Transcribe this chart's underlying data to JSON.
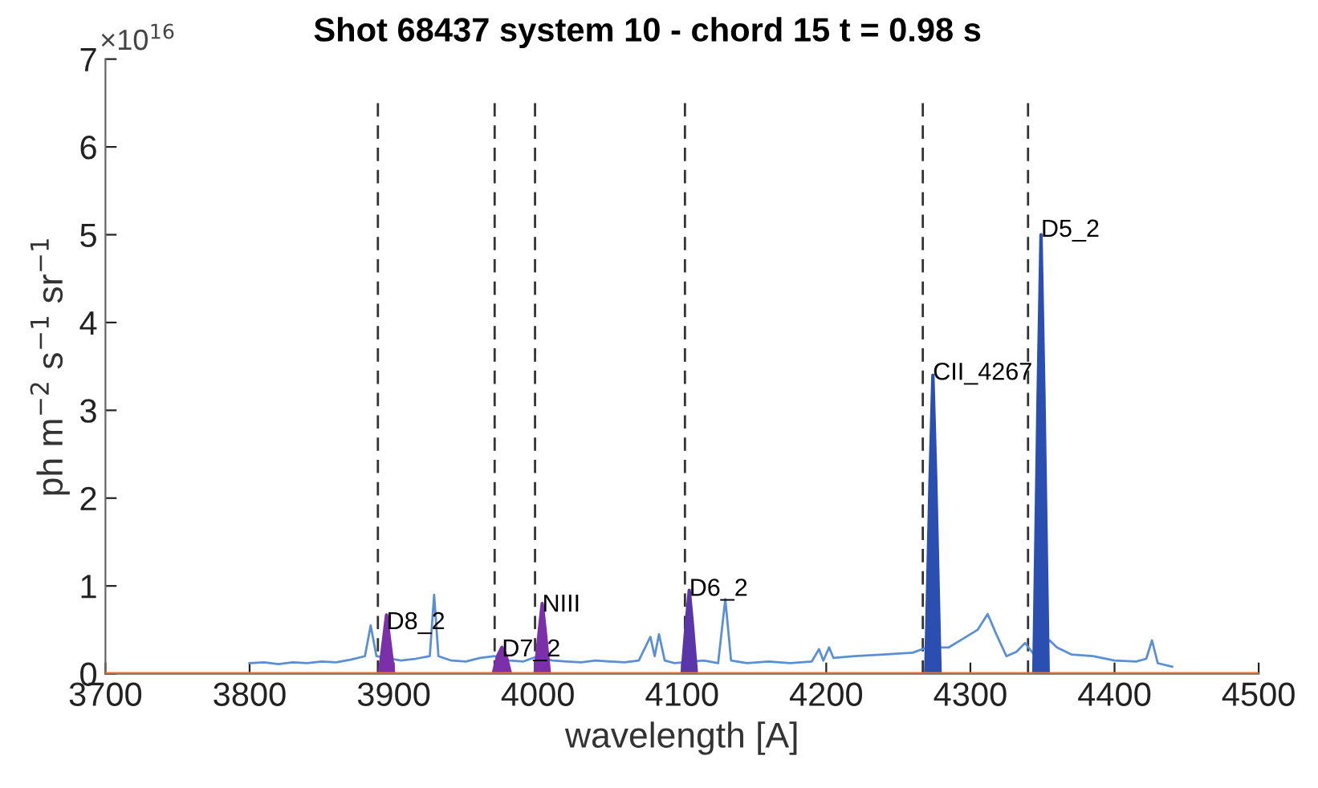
{
  "chart_data": {
    "type": "line",
    "title": "Shot 68437 system 10 - chord 15 t = 0.98 s",
    "xlabel": "wavelength [A]",
    "ylabel": "ph m$^{−2}$ s$^{−1}$ sr$^{−1}$",
    "xlim": [
      3700,
      4500
    ],
    "xticks": [
      3700,
      3800,
      3900,
      4000,
      4100,
      4200,
      4300,
      4400,
      4500
    ],
    "ylim": [
      0,
      7
    ],
    "yticks": [
      0,
      1,
      2,
      3,
      4,
      5,
      6,
      7
    ],
    "grid": false,
    "legend": false,
    "series": [
      {
        "color": "#5b8fd4",
        "x": [
          3800,
          3810,
          3820,
          3830,
          3840,
          3850,
          3860,
          3870,
          3880,
          3884,
          3888,
          3905,
          3915,
          3925,
          3928,
          3931,
          3940,
          3950,
          3960,
          3970,
          3980,
          3990,
          4000,
          4010,
          4020,
          4030,
          4040,
          4050,
          4060,
          4070,
          4078,
          4081,
          4084,
          4088,
          4095,
          4115,
          4125,
          4130,
          4134,
          4145,
          4160,
          4175,
          4190,
          4195,
          4198,
          4202,
          4205,
          4220,
          4240,
          4260,
          4270,
          4285,
          4295,
          4305,
          4312,
          4318,
          4325,
          4332,
          4338,
          4345,
          4355,
          4360,
          4370,
          4385,
          4400,
          4415,
          4422,
          4426,
          4430,
          4440
        ],
        "values": [
          0.12,
          0.13,
          0.11,
          0.13,
          0.12,
          0.14,
          0.13,
          0.16,
          0.2,
          0.55,
          0.2,
          0.15,
          0.17,
          0.2,
          0.9,
          0.2,
          0.15,
          0.14,
          0.18,
          0.2,
          0.15,
          0.14,
          0.2,
          0.15,
          0.14,
          0.13,
          0.15,
          0.14,
          0.13,
          0.15,
          0.42,
          0.2,
          0.45,
          0.15,
          0.12,
          0.15,
          0.12,
          0.85,
          0.15,
          0.12,
          0.14,
          0.12,
          0.14,
          0.28,
          0.15,
          0.3,
          0.18,
          0.2,
          0.22,
          0.24,
          0.3,
          0.3,
          0.4,
          0.5,
          0.68,
          0.45,
          0.2,
          0.25,
          0.35,
          0.2,
          0.38,
          0.3,
          0.22,
          0.2,
          0.15,
          0.14,
          0.17,
          0.38,
          0.12,
          0.08
        ]
      },
      {
        "type": "area",
        "color": "#7b2fa8",
        "x": [
          3890,
          3893,
          3895,
          3897,
          3900
        ],
        "values": [
          0,
          0.4,
          0.67,
          0.4,
          0
        ]
      },
      {
        "type": "area",
        "color": "#7b2fa8",
        "x": [
          3969,
          3972,
          3975,
          3978,
          3981
        ],
        "values": [
          0,
          0.2,
          0.3,
          0.2,
          0
        ]
      },
      {
        "type": "area",
        "color": "#7b2fa8",
        "x": [
          3998,
          4001,
          4003,
          4005,
          4008
        ],
        "values": [
          0,
          0.5,
          0.8,
          0.5,
          0
        ]
      },
      {
        "type": "area",
        "color": "#5a36a8",
        "x": [
          4100,
          4103,
          4105,
          4107,
          4110
        ],
        "values": [
          0,
          0.6,
          0.95,
          0.6,
          0
        ]
      },
      {
        "type": "area",
        "color": "#2a4fb0",
        "x": [
          4269,
          4272,
          4274,
          4276,
          4279
        ],
        "values": [
          0,
          2.2,
          3.4,
          2.2,
          0
        ]
      },
      {
        "type": "area",
        "color": "#2a4fb0",
        "x": [
          4344,
          4347,
          4349,
          4351,
          4354
        ],
        "values": [
          0,
          3.2,
          5.0,
          3.2,
          0
        ]
      }
    ],
    "ref_lines": [
      {
        "axis": "y",
        "value": 0,
        "color": "#e8743b",
        "line_style": "solid"
      },
      {
        "axis": "x",
        "value": 3889,
        "color": "#333333",
        "line_style": "dashed"
      },
      {
        "axis": "x",
        "value": 3970,
        "color": "#333333",
        "line_style": "dashed"
      },
      {
        "axis": "x",
        "value": 3998,
        "color": "#333333",
        "line_style": "dashed"
      },
      {
        "axis": "x",
        "value": 4102,
        "color": "#333333",
        "line_style": "dashed"
      },
      {
        "axis": "x",
        "value": 4267,
        "color": "#333333",
        "line_style": "dashed"
      },
      {
        "axis": "x",
        "value": 4340,
        "color": "#333333",
        "line_style": "dashed"
      }
    ],
    "annotations": [
      "×10$^{16}$",
      {
        "text": "D8_2",
        "x": 3895,
        "y": 0.58
      },
      {
        "text": "D7_2",
        "x": 3975,
        "y": 0.27
      },
      {
        "text": "NIII",
        "x": 4003,
        "y": 0.78
      },
      {
        "text": "D6_2",
        "x": 4105,
        "y": 0.96
      },
      {
        "text": "CII_4267",
        "x": 4274,
        "y": 3.42
      },
      {
        "text": "D5_2",
        "x": 4349,
        "y": 5.05
      }
    ]
  }
}
